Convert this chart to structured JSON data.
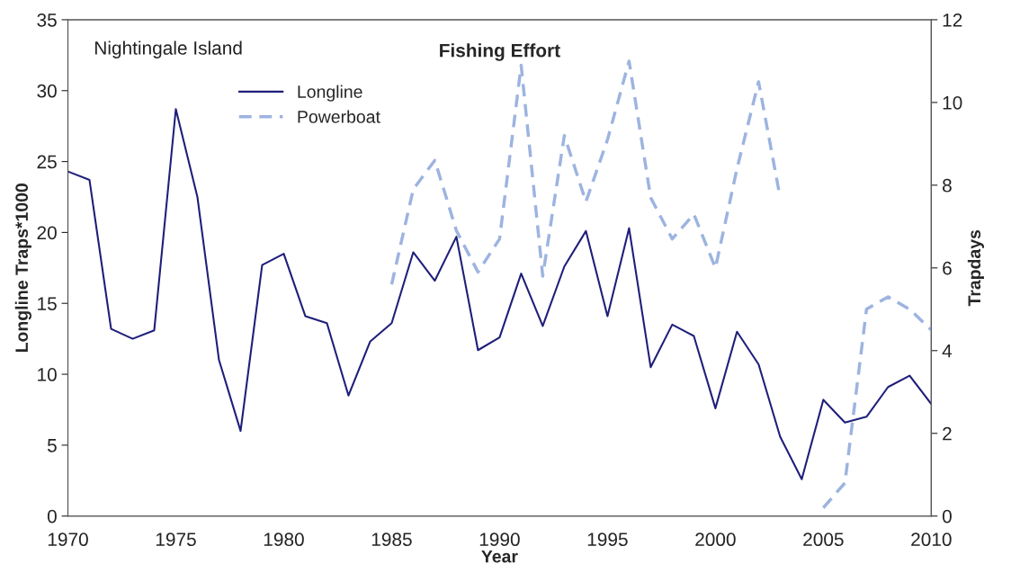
{
  "chart_data": {
    "type": "line",
    "title": "Fishing Effort",
    "xlabel": "Year",
    "ylabel": "Longline Traps*1000",
    "y2label": "Trapdays",
    "annotations": [
      "Nightingale Island"
    ],
    "x": [
      1970,
      1971,
      1972,
      1973,
      1974,
      1975,
      1976,
      1977,
      1978,
      1979,
      1980,
      1981,
      1982,
      1983,
      1984,
      1985,
      1986,
      1987,
      1988,
      1989,
      1990,
      1991,
      1992,
      1993,
      1994,
      1995,
      1996,
      1997,
      1998,
      1999,
      2000,
      2001,
      2002,
      2003,
      2004,
      2005,
      2006,
      2007,
      2008,
      2009,
      2010
    ],
    "series": [
      {
        "name": "Longline",
        "color": "#1f1f7a",
        "line_style": "solid",
        "values": [
          24.3,
          23.7,
          13.2,
          12.5,
          13.1,
          28.7,
          22.5,
          11,
          6,
          17.7,
          18.5,
          14.1,
          13.6,
          8.5,
          12.3,
          13.6,
          18.6,
          16.6,
          19.7,
          11.7,
          12.6,
          17.1,
          13.4,
          17.6,
          20.1,
          14.1,
          20.3,
          10.5,
          13.5,
          12.7,
          7.6,
          13,
          10.7,
          5.6,
          2.6,
          8.2,
          6.6,
          7,
          9.1,
          9.9,
          7.9
        ]
      },
      {
        "name": "Powerboat",
        "color": "#9db4e0",
        "line_style": "dashed",
        "axis": "y2",
        "values": [
          null,
          null,
          null,
          null,
          null,
          null,
          null,
          null,
          null,
          null,
          null,
          null,
          null,
          null,
          null,
          5.6,
          7.9,
          8.6,
          6.9,
          5.9,
          6.7,
          10.9,
          5.8,
          9.2,
          7.6,
          9.1,
          11.0,
          7.7,
          6.7,
          7.3,
          6.0,
          8.4,
          10.5,
          7.7,
          null,
          0.2,
          0.8,
          5.0,
          5.3,
          5.0,
          4.5
        ]
      }
    ],
    "xlim": [
      1970,
      2010
    ],
    "xticks": [
      1970,
      1975,
      1980,
      1985,
      1990,
      1995,
      2000,
      2005,
      2010
    ],
    "ylim": [
      0,
      35
    ],
    "yticks": [
      0,
      5,
      10,
      15,
      20,
      25,
      30,
      35
    ],
    "y2lim": [
      0,
      12
    ],
    "y2ticks": [
      0,
      2,
      4,
      6,
      8,
      10,
      12
    ],
    "grid": false,
    "legend": "top left"
  }
}
